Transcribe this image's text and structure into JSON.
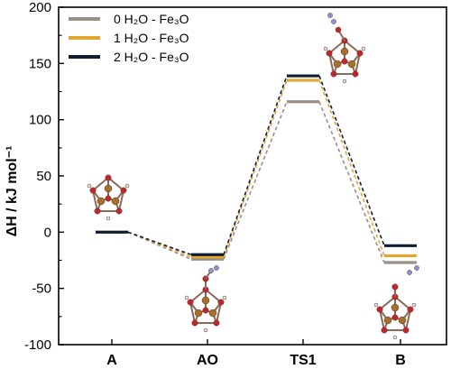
{
  "chart_data": {
    "type": "line",
    "title": "",
    "xlabel": "",
    "ylabel": "ΔH / kJ mol⁻¹",
    "categories": [
      "A",
      "AO",
      "TS1",
      "B"
    ],
    "ylim": [
      -100,
      200
    ],
    "yticks": [
      -100,
      -50,
      0,
      50,
      100,
      150,
      200
    ],
    "grid": false,
    "legend_position": "top-left",
    "series": [
      {
        "name": "0 H₂O - Fe₃O",
        "color": "#9a8f85",
        "values": [
          0,
          -24,
          116,
          -27
        ]
      },
      {
        "name": "1 H₂O - Fe₃O",
        "color": "#e2a731",
        "values": [
          0,
          -22,
          135,
          -21
        ]
      },
      {
        "name": "2 H₂O - Fe₃O",
        "color": "#0f1e33",
        "values": [
          0,
          -20,
          139,
          -12
        ]
      }
    ],
    "insets": [
      {
        "name": "molecule-structure-A",
        "category": "A"
      },
      {
        "name": "molecule-structure-AO",
        "category": "AO"
      },
      {
        "name": "molecule-structure-TS1",
        "category": "TS1"
      },
      {
        "name": "molecule-structure-B",
        "category": "B"
      }
    ]
  }
}
